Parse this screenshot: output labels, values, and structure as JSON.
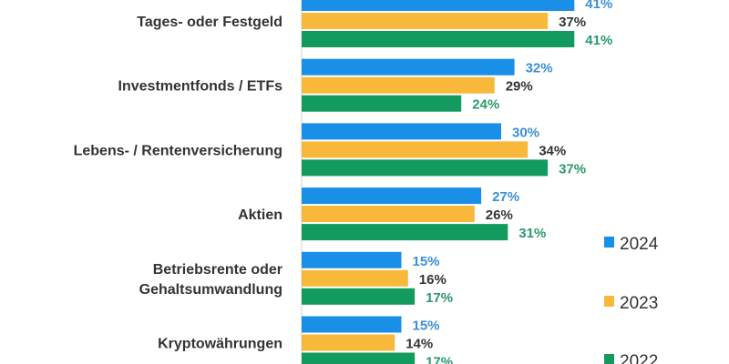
{
  "chart_data": {
    "type": "bar",
    "orientation": "horizontal",
    "categories": [
      [
        "Tages- oder Festgeld"
      ],
      [
        "Investmentfonds / ETFs"
      ],
      [
        "Lebens- / Rentenversicherung"
      ],
      [
        "Aktien"
      ],
      [
        "Betriebsrente oder",
        "Gehaltsumwandlung"
      ],
      [
        "Kryptowährungen"
      ]
    ],
    "series": [
      {
        "name": "2024",
        "color": "#1a8fe8",
        "label_color": "#3b8fd4",
        "values": [
          41,
          32,
          30,
          27,
          15,
          15
        ]
      },
      {
        "name": "2023",
        "color": "#f8b83a",
        "label_color": "#333333",
        "values": [
          37,
          29,
          34,
          26,
          16,
          14
        ]
      },
      {
        "name": "2022",
        "color": "#139a5f",
        "label_color": "#2a9a6a",
        "values": [
          41,
          24,
          37,
          31,
          17,
          17
        ]
      }
    ],
    "value_format": "{v}%",
    "legend_placement": "right",
    "grid": false
  }
}
